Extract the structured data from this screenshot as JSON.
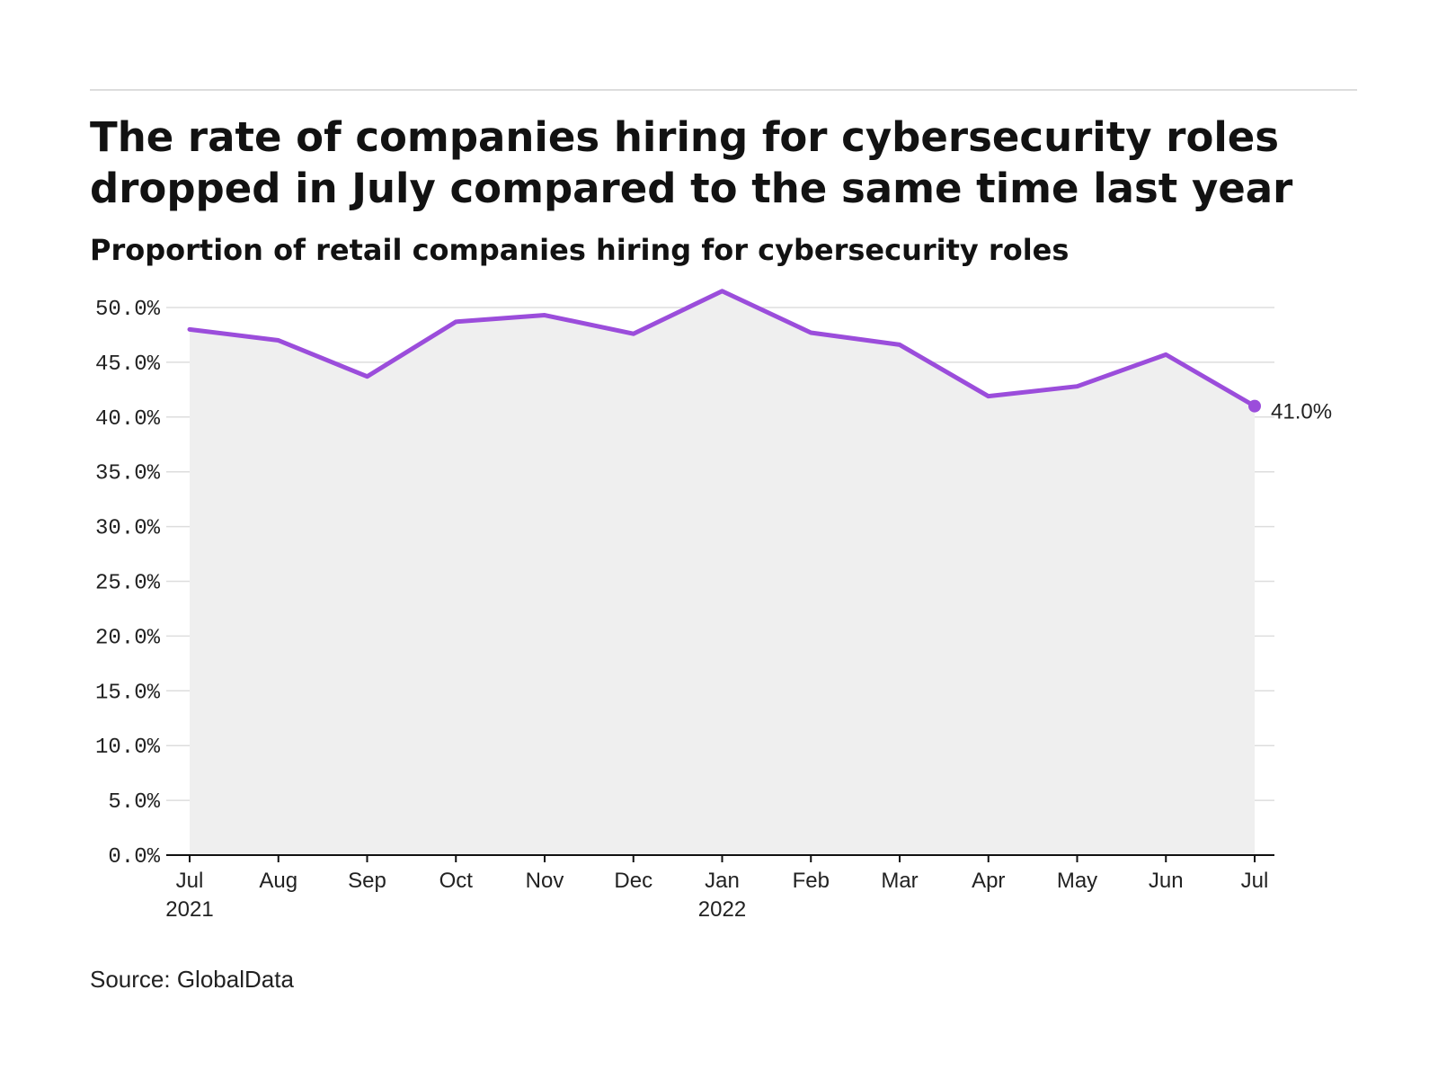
{
  "header": {
    "title": "The rate of companies hiring for cybersecurity roles dropped in July compared to the same time last year",
    "subtitle": "Proportion of retail companies hiring for cybersecurity roles"
  },
  "footer": {
    "source": "Source: GlobalData"
  },
  "chart_data": {
    "type": "area",
    "title": "The rate of companies hiring for cybersecurity roles dropped in July compared to the same time last year",
    "subtitle": "Proportion of retail companies hiring for cybersecurity roles",
    "xlabel": "",
    "ylabel": "",
    "x": [
      "Jul 2021",
      "Aug 2021",
      "Sep 2021",
      "Oct 2021",
      "Nov 2021",
      "Dec 2021",
      "Jan 2022",
      "Feb 2022",
      "Mar 2022",
      "Apr 2022",
      "May 2022",
      "Jun 2022",
      "Jul 2022"
    ],
    "x_tick_labels": [
      {
        "month": "Jul",
        "year": "2021"
      },
      {
        "month": "Aug",
        "year": ""
      },
      {
        "month": "Sep",
        "year": ""
      },
      {
        "month": "Oct",
        "year": ""
      },
      {
        "month": "Nov",
        "year": ""
      },
      {
        "month": "Dec",
        "year": ""
      },
      {
        "month": "Jan",
        "year": "2022"
      },
      {
        "month": "Feb",
        "year": ""
      },
      {
        "month": "Mar",
        "year": ""
      },
      {
        "month": "Apr",
        "year": ""
      },
      {
        "month": "May",
        "year": ""
      },
      {
        "month": "Jun",
        "year": ""
      },
      {
        "month": "Jul",
        "year": ""
      }
    ],
    "series": [
      {
        "values": [
          48.0,
          47.0,
          43.7,
          48.7,
          49.3,
          47.6,
          51.5,
          47.7,
          46.6,
          41.9,
          42.8,
          45.7,
          41.0
        ]
      }
    ],
    "y_ticks": [
      "0.0%",
      "5.0%",
      "10.0%",
      "15.0%",
      "20.0%",
      "25.0%",
      "30.0%",
      "35.0%",
      "40.0%",
      "45.0%",
      "50.0%"
    ],
    "ylim": [
      0,
      50
    ],
    "end_label": "41.0%",
    "grid": true,
    "legend": "none",
    "colors": {
      "line": "#9b4ddb",
      "area": "#efefef",
      "grid": "#dddddd",
      "axis": "#111111"
    }
  }
}
